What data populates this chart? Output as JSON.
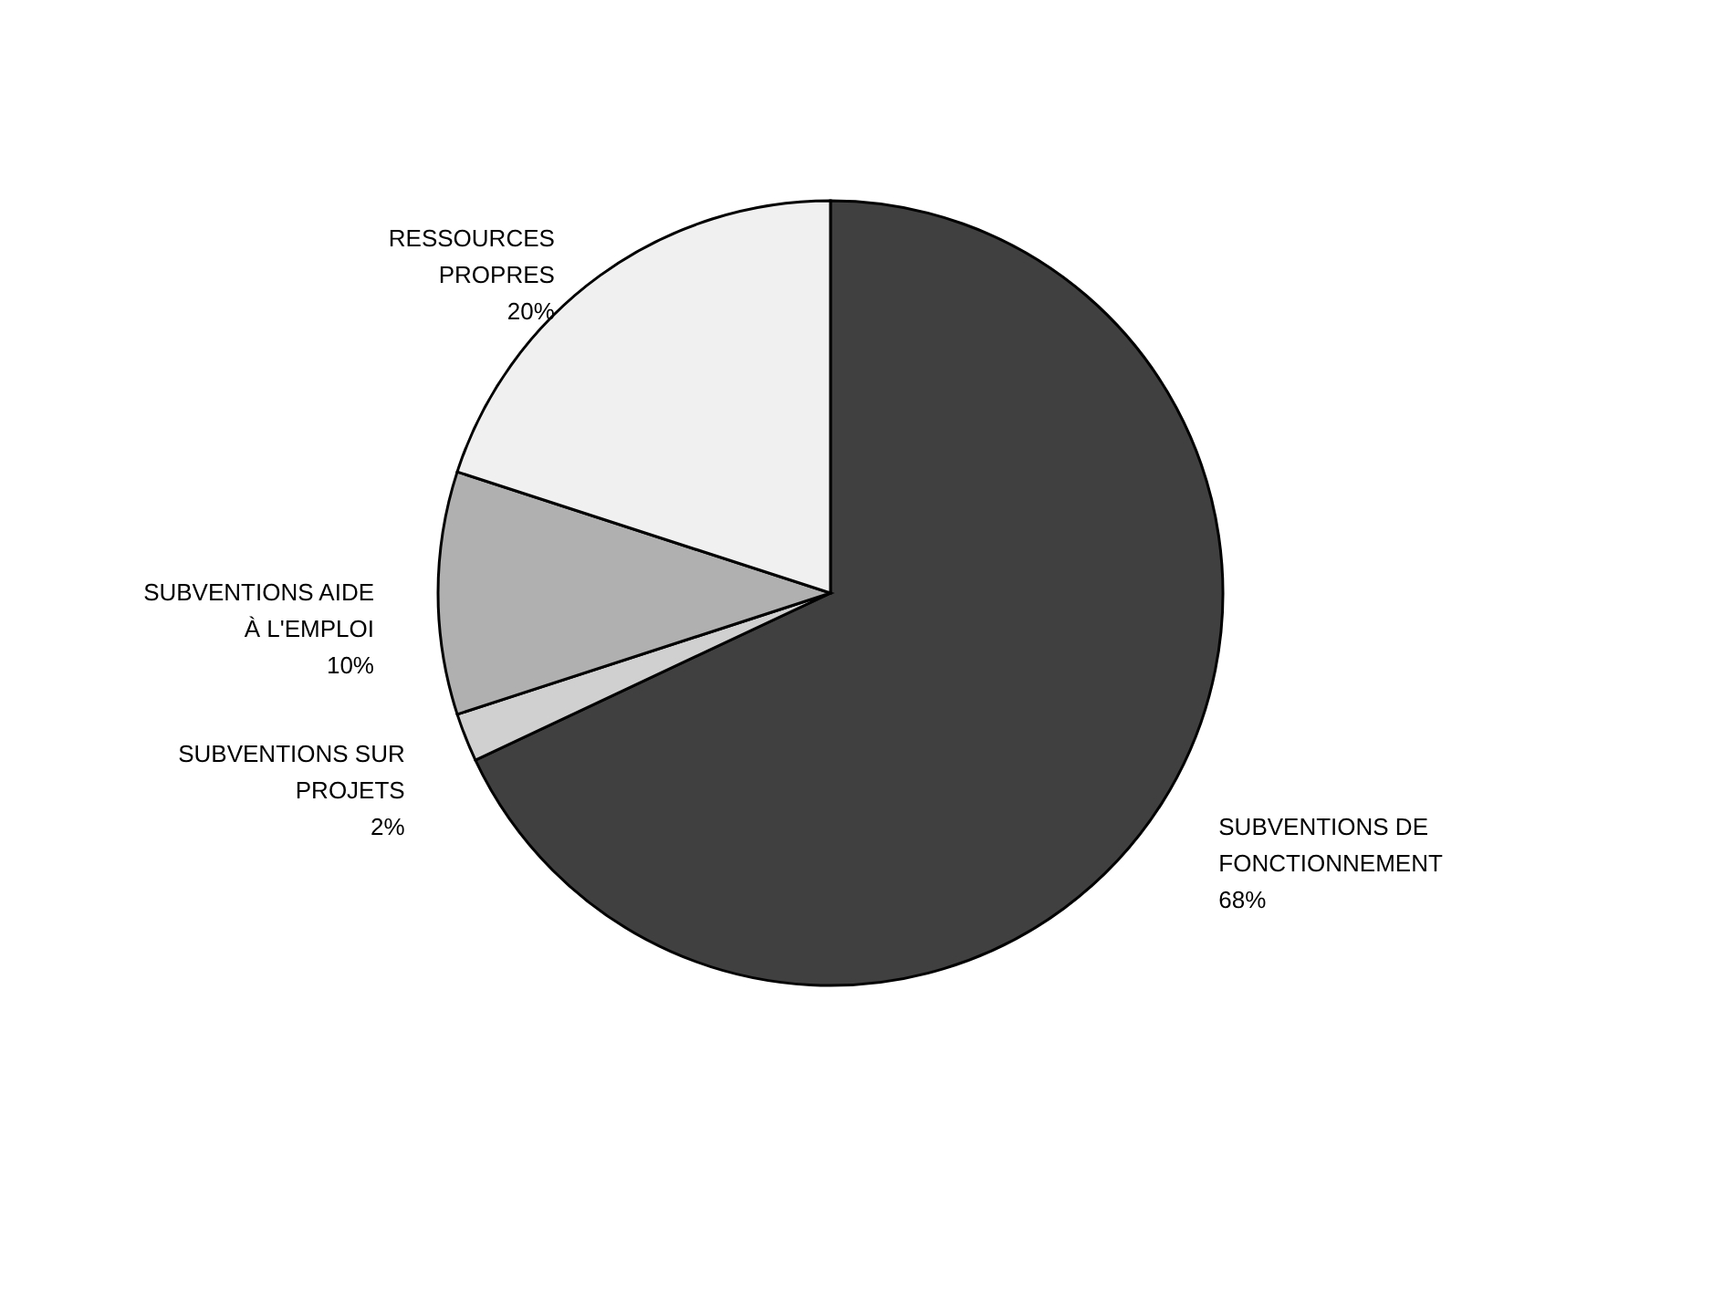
{
  "chart_data": {
    "type": "pie",
    "categories": [
      "SUBVENTIONS DE FONCTIONNEMENT",
      "SUBVENTIONS SUR PROJETS",
      "SUBVENTIONS AIDE À L'EMPLOI",
      "RESSOURCES PROPRES"
    ],
    "values": [
      68,
      2,
      10,
      20
    ],
    "value_labels": [
      "68%",
      "2%",
      "10%",
      "20%"
    ],
    "colors": [
      "#404040",
      "#d0d0d0",
      "#b0b0b0",
      "#f0f0f0"
    ],
    "legend": false
  }
}
